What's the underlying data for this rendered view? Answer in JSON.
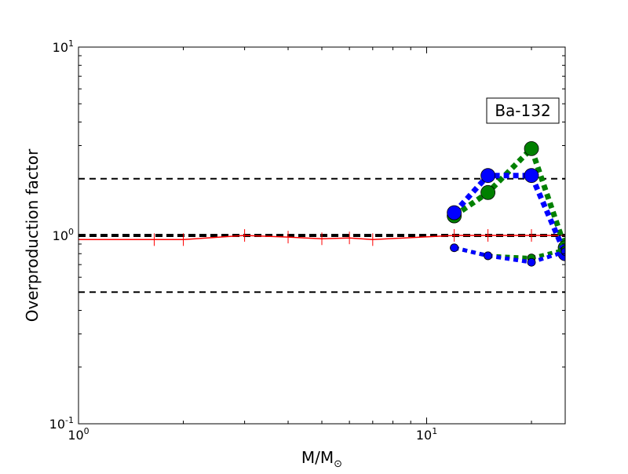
{
  "chart_data": {
    "type": "line",
    "title": "",
    "xlabel": "M/M",
    "xlabel_sub": "⊙",
    "ylabel": "Overproduction factor",
    "xscale": "log",
    "yscale": "log",
    "xlim": [
      1,
      25
    ],
    "ylim": [
      0.1,
      10
    ],
    "grid": false,
    "annotation": "Ba-132",
    "x_ticks": [
      {
        "base": "10",
        "exp": "0",
        "value": 1
      },
      {
        "base": "10",
        "exp": "1",
        "value": 10
      }
    ],
    "y_ticks": [
      {
        "base": "10",
        "exp": "-1",
        "value": 0.1
      },
      {
        "base": "10",
        "exp": "0",
        "value": 1
      },
      {
        "base": "10",
        "exp": "1",
        "value": 10
      }
    ],
    "reference_lines": [
      {
        "y": 2.0,
        "color": "#000000",
        "style": "dashed",
        "weight": "normal"
      },
      {
        "y": 1.0,
        "color": "#000000",
        "style": "dashed",
        "weight": "bold"
      },
      {
        "y": 0.5,
        "color": "#000000",
        "style": "dashed",
        "weight": "normal"
      }
    ],
    "series": [
      {
        "color": "#ff0000",
        "style": "solid",
        "marker": "tick",
        "x": [
          1,
          1.65,
          2,
          3,
          4,
          5,
          6,
          7,
          12,
          15,
          20,
          25
        ],
        "y": [
          0.95,
          0.95,
          0.95,
          1.0,
          0.98,
          0.96,
          0.97,
          0.95,
          1.0,
          1.0,
          1.0,
          1.0
        ]
      },
      {
        "color": "#008000",
        "style": "dotted",
        "marker": "circle-large",
        "x": [
          12,
          15,
          20,
          25
        ],
        "y": [
          1.27,
          1.69,
          2.89,
          0.86
        ]
      },
      {
        "color": "#0000ff",
        "style": "dotted",
        "marker": "circle-large",
        "x": [
          12,
          15,
          20,
          25
        ],
        "y": [
          1.32,
          2.08,
          2.08,
          0.8
        ]
      },
      {
        "color": "#008000",
        "style": "dotted",
        "marker": "circle-small",
        "x": [
          12,
          15,
          20,
          25
        ],
        "y": [
          0.86,
          0.78,
          0.76,
          0.84
        ]
      },
      {
        "color": "#0000ff",
        "style": "dotted",
        "marker": "circle-small",
        "x": [
          12,
          15,
          20,
          25
        ],
        "y": [
          0.86,
          0.78,
          0.72,
          0.82
        ]
      }
    ]
  }
}
